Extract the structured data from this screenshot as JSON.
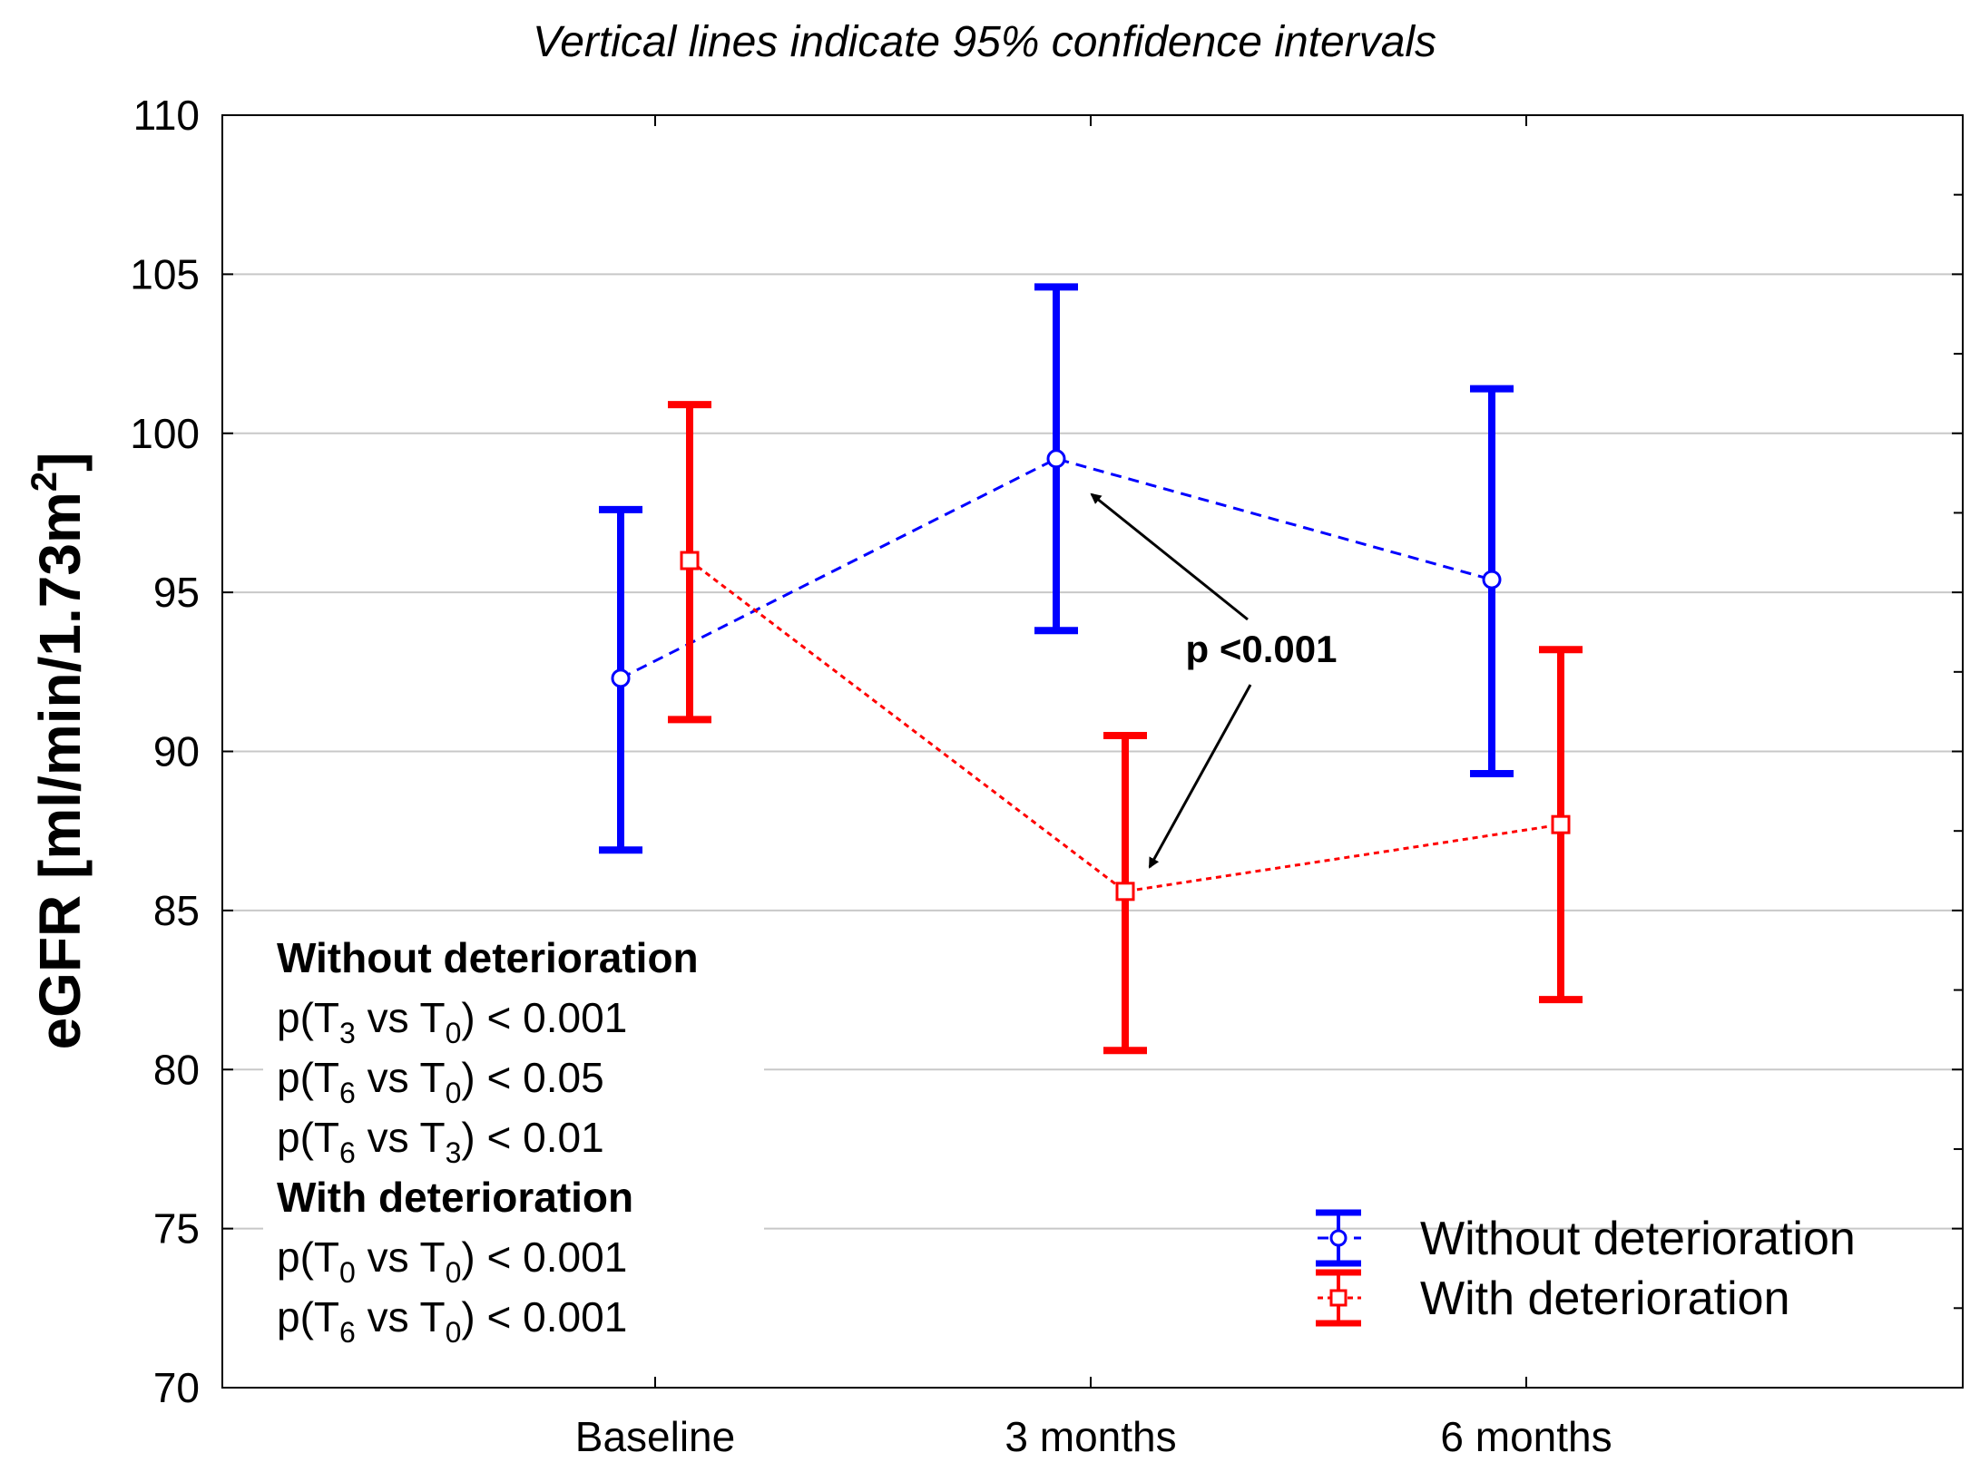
{
  "chart_data": {
    "type": "line",
    "title": "Vertical lines indicate 95% confidence intervals",
    "xlabel": "",
    "ylabel": "eGFR [ml/min/1.73m",
    "ylabel_sup": "2",
    "ylabel_close": "]",
    "categories": [
      "Baseline",
      "3 months",
      "6 months"
    ],
    "ylim": [
      70,
      110
    ],
    "yticks": [
      70,
      75,
      80,
      85,
      90,
      95,
      100,
      105,
      110
    ],
    "grid": true,
    "series": [
      {
        "name": "Without deterioration",
        "color": "#0000ff",
        "marker": "circle",
        "line_style": "dashed",
        "values": [
          92.3,
          99.2,
          95.4
        ],
        "ci_low": [
          86.9,
          93.8,
          89.3
        ],
        "ci_high": [
          97.6,
          104.6,
          101.4
        ]
      },
      {
        "name": "With deterioration",
        "color": "#ff0000",
        "marker": "square",
        "line_style": "dotted",
        "values": [
          96.0,
          85.6,
          87.7
        ],
        "ci_low": [
          91.0,
          80.6,
          82.2
        ],
        "ci_high": [
          100.9,
          90.5,
          93.2
        ]
      }
    ],
    "annotations": {
      "pvalue_label": "p <0.001",
      "stats_groups": [
        {
          "heading": "Without deterioration",
          "lines": [
            {
              "a": "3",
              "b": "0",
              "rel": "< 0.001"
            },
            {
              "a": "6",
              "b": "0",
              "rel": "< 0.05"
            },
            {
              "a": "6",
              "b": "3",
              "rel": "< 0.01"
            }
          ]
        },
        {
          "heading": "With deterioration",
          "lines": [
            {
              "a": "0",
              "b": "0",
              "rel": "< 0.001"
            },
            {
              "a": "6",
              "b": "0",
              "rel": "< 0.001"
            }
          ]
        }
      ]
    },
    "legend_position": "bottom-right"
  }
}
